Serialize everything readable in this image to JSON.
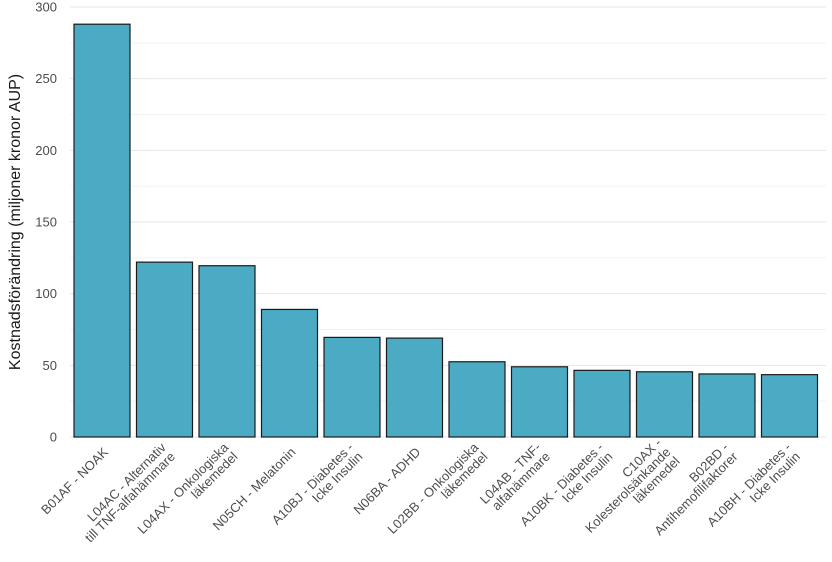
{
  "chart_data": {
    "type": "bar",
    "title": "",
    "xlabel": "",
    "ylabel": "Kostnadsförändring (miljoner kronor AUP)",
    "ylim": [
      0,
      300
    ],
    "yticks": [
      0,
      50,
      100,
      150,
      200,
      250,
      300
    ],
    "grid": true,
    "bar_color": "#4BAAC4",
    "categories": [
      [
        "B01AF - NOAK"
      ],
      [
        "L04AC - Alternativ",
        "till TNF-alfahämmare"
      ],
      [
        "L04AX - Onkologiska",
        "läkemedel"
      ],
      [
        "N05CH - Melatonin"
      ],
      [
        "A10BJ - Diabetes -",
        "Icke Insulin"
      ],
      [
        "N06BA - ADHD"
      ],
      [
        "L02BB - Onkologiska",
        "läkemedel"
      ],
      [
        "L04AB - TNF-",
        "alfahämmare"
      ],
      [
        "A10BK - Diabetes -",
        "Icke Insulin"
      ],
      [
        "C10AX -",
        "Kolesterolsänkande",
        "läkemedel"
      ],
      [
        "B02BD -",
        "Antihemofilifaktorer"
      ],
      [
        "A10BH - Diabetes -",
        "Icke Insulin"
      ]
    ],
    "values": [
      288,
      122,
      119.5,
      89,
      69.5,
      69,
      52.5,
      49,
      46.5,
      45.5,
      44,
      43.5
    ]
  }
}
